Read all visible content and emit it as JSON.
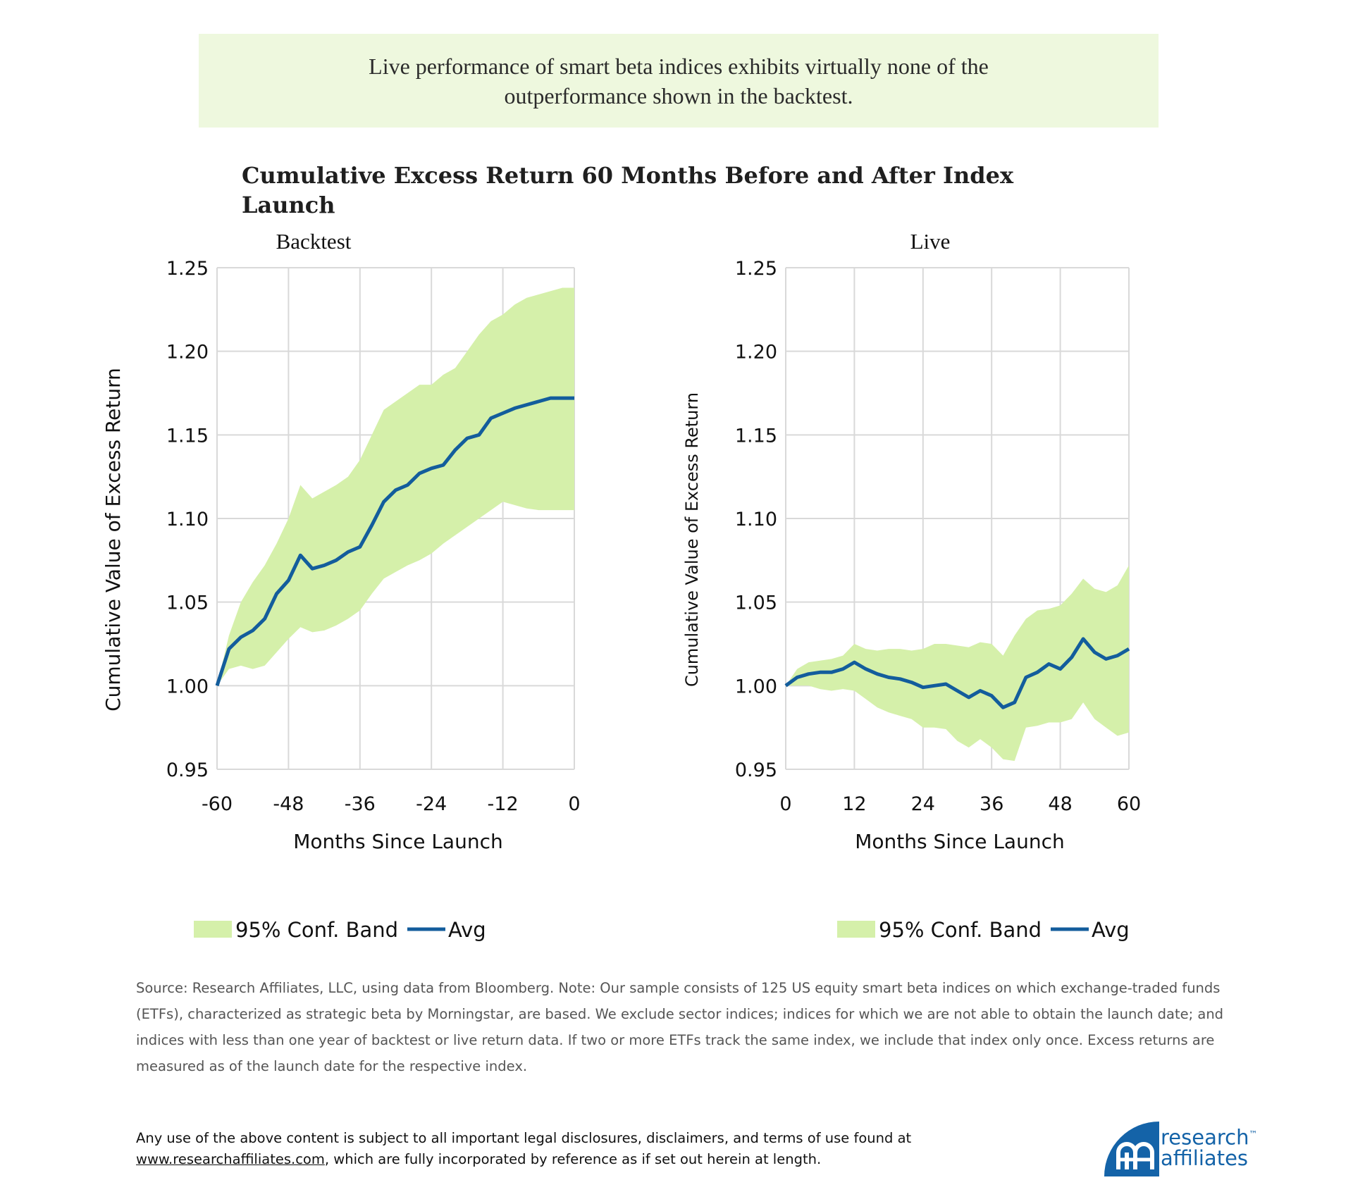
{
  "callout": {
    "line1": "Live performance of smart beta indices exhibits virtually none of the",
    "line2": "outperformance shown in the backtest."
  },
  "main_title": "Cumulative Excess Return 60 Months Before and After Index Launch",
  "legend": {
    "band_label": "95% Conf. Band",
    "line_label": "Avg"
  },
  "colors": {
    "band": "#d5f0aa",
    "line": "#135d9c",
    "grid": "#d9d9d9",
    "callout_bg": "#eef8de",
    "logo": "#1463a8"
  },
  "chart_data": [
    {
      "type": "area",
      "title": "Backtest",
      "xlabel": "Months Since Launch",
      "ylabel": "Cumulative Value of Excess Return",
      "xlim": [
        -60,
        0
      ],
      "ylim": [
        0.95,
        1.25
      ],
      "xticks": [
        -60,
        -48,
        -36,
        -24,
        -12,
        0
      ],
      "xtick_labels": [
        "-60",
        "-48",
        "-36",
        "-24",
        "-12",
        "0"
      ],
      "yticks": [
        0.95,
        1.0,
        1.05,
        1.1,
        1.15,
        1.2,
        1.25
      ],
      "ytick_labels": [
        "0.95",
        "1.00",
        "1.05",
        "1.10",
        "1.15",
        "1.20",
        "1.25"
      ],
      "x": [
        -60,
        -58,
        -56,
        -54,
        -52,
        -50,
        -48,
        -46,
        -44,
        -42,
        -40,
        -38,
        -36,
        -34,
        -32,
        -30,
        -28,
        -26,
        -24,
        -22,
        -20,
        -18,
        -16,
        -14,
        -12,
        -10,
        -8,
        -6,
        -4,
        -2,
        0
      ],
      "series": [
        {
          "name": "Avg",
          "values": [
            1.0,
            1.022,
            1.029,
            1.033,
            1.04,
            1.055,
            1.063,
            1.078,
            1.07,
            1.072,
            1.075,
            1.08,
            1.083,
            1.096,
            1.11,
            1.117,
            1.12,
            1.127,
            1.13,
            1.132,
            1.141,
            1.148,
            1.15,
            1.16,
            1.163,
            1.166,
            1.168,
            1.17,
            1.172,
            1.172,
            1.172
          ]
        },
        {
          "name": "95% Conf. Band upper",
          "values": [
            1.0,
            1.03,
            1.05,
            1.062,
            1.072,
            1.085,
            1.1,
            1.12,
            1.112,
            1.116,
            1.12,
            1.125,
            1.135,
            1.15,
            1.165,
            1.17,
            1.175,
            1.18,
            1.18,
            1.186,
            1.19,
            1.2,
            1.21,
            1.218,
            1.222,
            1.228,
            1.232,
            1.234,
            1.236,
            1.238,
            1.238
          ]
        },
        {
          "name": "95% Conf. Band lower",
          "values": [
            1.0,
            1.01,
            1.012,
            1.01,
            1.012,
            1.02,
            1.028,
            1.035,
            1.032,
            1.033,
            1.036,
            1.04,
            1.045,
            1.055,
            1.064,
            1.068,
            1.072,
            1.075,
            1.079,
            1.085,
            1.09,
            1.095,
            1.1,
            1.105,
            1.11,
            1.108,
            1.106,
            1.105,
            1.105,
            1.105,
            1.105
          ]
        }
      ]
    },
    {
      "type": "area",
      "title": "Live",
      "xlabel": "Months Since Launch",
      "ylabel": "Cumulative Value of Excess Return",
      "xlim": [
        0,
        60
      ],
      "ylim": [
        0.95,
        1.25
      ],
      "xticks": [
        0,
        12,
        24,
        36,
        48,
        60
      ],
      "xtick_labels": [
        "0",
        "12",
        "24",
        "36",
        "48",
        "60"
      ],
      "yticks": [
        0.95,
        1.0,
        1.05,
        1.1,
        1.15,
        1.2,
        1.25
      ],
      "ytick_labels": [
        "0.95",
        "1.00",
        "1.05",
        "1.10",
        "1.15",
        "1.20",
        "1.25"
      ],
      "x": [
        0,
        2,
        4,
        6,
        8,
        10,
        12,
        14,
        16,
        18,
        20,
        22,
        24,
        26,
        28,
        30,
        32,
        34,
        36,
        38,
        40,
        42,
        44,
        46,
        48,
        50,
        52,
        54,
        56,
        58,
        60
      ],
      "series": [
        {
          "name": "Avg",
          "values": [
            1.0,
            1.005,
            1.007,
            1.008,
            1.008,
            1.01,
            1.014,
            1.01,
            1.007,
            1.005,
            1.004,
            1.002,
            0.999,
            1.0,
            1.001,
            0.997,
            0.993,
            0.997,
            0.994,
            0.987,
            0.99,
            1.005,
            1.008,
            1.013,
            1.01,
            1.017,
            1.028,
            1.02,
            1.016,
            1.018,
            1.022
          ]
        },
        {
          "name": "95% Conf. Band upper",
          "values": [
            1.0,
            1.01,
            1.014,
            1.015,
            1.016,
            1.018,
            1.025,
            1.022,
            1.021,
            1.022,
            1.022,
            1.021,
            1.022,
            1.025,
            1.025,
            1.024,
            1.023,
            1.026,
            1.025,
            1.018,
            1.03,
            1.04,
            1.045,
            1.046,
            1.048,
            1.055,
            1.064,
            1.058,
            1.056,
            1.06,
            1.072
          ]
        },
        {
          "name": "95% Conf. Band lower",
          "values": [
            1.0,
            1.0,
            1.0,
            0.998,
            0.997,
            0.998,
            0.997,
            0.992,
            0.987,
            0.984,
            0.982,
            0.98,
            0.975,
            0.975,
            0.974,
            0.967,
            0.963,
            0.968,
            0.963,
            0.956,
            0.955,
            0.975,
            0.976,
            0.978,
            0.978,
            0.98,
            0.99,
            0.98,
            0.975,
            0.97,
            0.972
          ]
        }
      ]
    }
  ],
  "source_note": "Source: Research Affiliates, LLC, using data from Bloomberg. Note: Our sample consists of 125 US equity smart beta indices on which exchange-traded funds (ETFs), characterized as strategic beta by Morningstar, are based. We exclude sector indices; indices for which we are not able to obtain the launch date; and indices with less than one year of backtest or live return data. If two or more ETFs track the same index, we include that index only once. Excess returns are measured as of the launch date for the respective index.",
  "disclaimer": {
    "text_before": "Any use of the above content is subject to all important legal disclosures, disclaimers, and terms of use found at",
    "link": "www.researchaffiliates.com",
    "text_after": ", which are fully incorporated by reference as if set out herein at length."
  },
  "logo": {
    "line1": "research",
    "line2": "affiliates",
    "tm": "™"
  }
}
